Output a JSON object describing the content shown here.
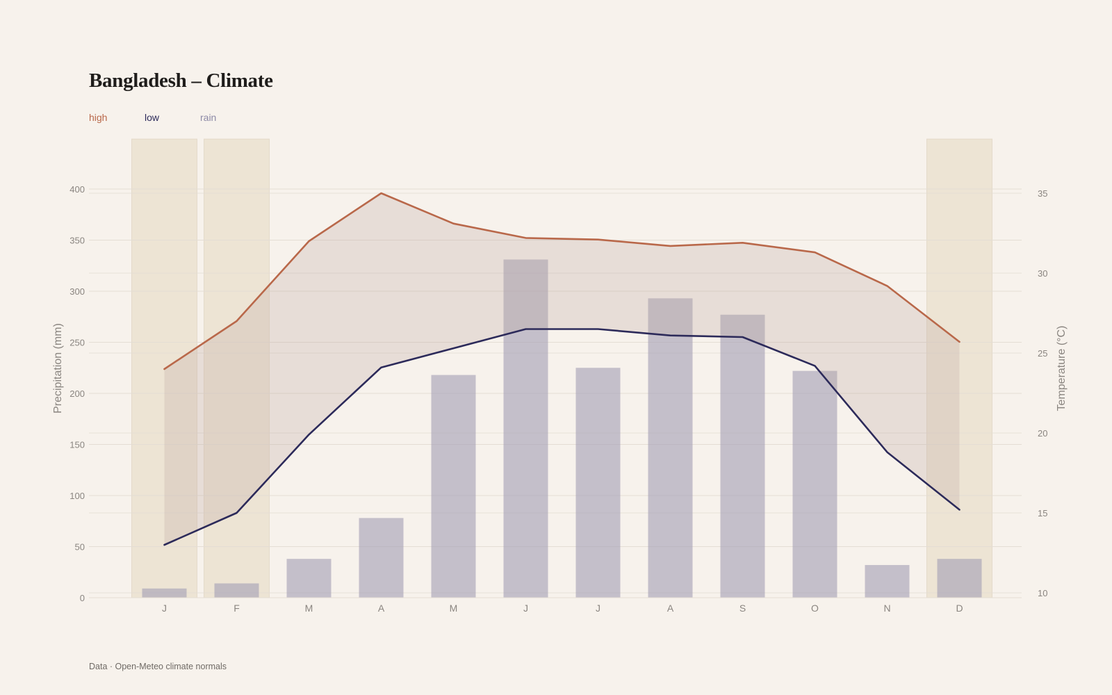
{
  "colors": {
    "background": "#f7f2ec",
    "high": "#b9684a",
    "low": "#2c2a5a",
    "rain": "#8c89a6",
    "band": "rgba(190,170,160,0.28)",
    "bar": "rgba(165,160,180,0.62)",
    "shade": "rgba(225,210,185,0.45)",
    "grid": "#e4ddd4",
    "axis_text": "#8a8580"
  },
  "title": "Bangladesh – Climate",
  "legend": {
    "high": "high",
    "low": "low",
    "rain": "rain"
  },
  "source": "Data · Open-Meteo climate normals",
  "chart_data": {
    "type": "bar+line",
    "categories": [
      "J",
      "F",
      "M",
      "A",
      "M",
      "J",
      "J",
      "A",
      "S",
      "O",
      "N",
      "D"
    ],
    "shaded_months": [
      0,
      1,
      11
    ],
    "series": [
      {
        "name": "rain",
        "axis": "left",
        "kind": "bar",
        "values": [
          9,
          14,
          38,
          78,
          218,
          331,
          225,
          293,
          277,
          222,
          32,
          38
        ]
      },
      {
        "name": "high",
        "axis": "right",
        "kind": "line",
        "values": [
          24.0,
          27.0,
          32.0,
          35.0,
          33.1,
          32.2,
          32.1,
          31.7,
          31.9,
          31.3,
          29.2,
          25.7
        ]
      },
      {
        "name": "low",
        "axis": "right",
        "kind": "line",
        "values": [
          13.0,
          15.0,
          19.9,
          24.1,
          25.3,
          26.5,
          26.5,
          26.1,
          26.0,
          24.2,
          18.8,
          15.2
        ]
      }
    ],
    "ylabel_left": "Precipitation (mm)",
    "ylabel_right": "Temperature (°C)",
    "ylim_left": [
      0,
      400
    ],
    "ylim_right": [
      10,
      35
    ],
    "yticks_left": [
      0,
      50,
      100,
      150,
      200,
      250,
      300,
      350,
      400
    ],
    "yticks_right": [
      10,
      15,
      20,
      25,
      30,
      35
    ],
    "grid": true
  }
}
